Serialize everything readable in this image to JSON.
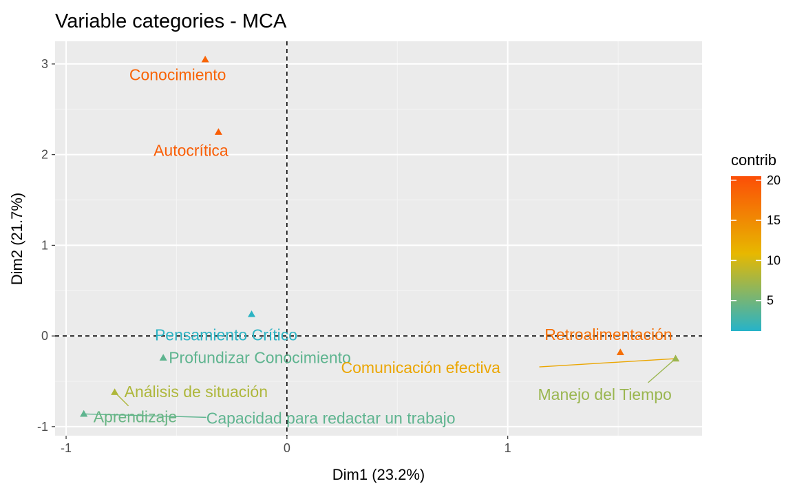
{
  "chart_data": {
    "type": "scatter",
    "title": "Variable categories - MCA",
    "xlabel": "Dim1 (23.2%)",
    "ylabel": "Dim2 (21.7%)",
    "xlim": [
      -1.05,
      1.88
    ],
    "ylim": [
      -1.1,
      3.25
    ],
    "xticks": [
      -1,
      0,
      1
    ],
    "yticks": [
      -1,
      0,
      1,
      2,
      3
    ],
    "grid": true,
    "reference_lines": {
      "x": 0,
      "y": 0,
      "style": "dashed"
    },
    "legend": {
      "title": "contrib",
      "position": "right",
      "ticks": [
        5,
        10,
        15,
        20
      ],
      "range": [
        1.2,
        20.5
      ],
      "gradient": [
        "#26b3c9",
        "#e7b800",
        "#fc4e07"
      ]
    },
    "points": [
      {
        "label": "Conocimiento",
        "x": -0.37,
        "y": 3.05,
        "contrib": 18.5
      },
      {
        "label": "Autocrítica",
        "x": -0.31,
        "y": 2.25,
        "contrib": 19.0
      },
      {
        "label": "Pensamiento Crítico",
        "x": -0.16,
        "y": 0.24,
        "contrib": 1.5
      },
      {
        "label": "Profundizar Conocimiento",
        "x": -0.56,
        "y": -0.24,
        "contrib": 4.0
      },
      {
        "label": "Análisis de situación",
        "x": -0.78,
        "y": -0.62,
        "contrib": 8.0
      },
      {
        "label": "Aprendizaje",
        "x": -0.92,
        "y": -0.86,
        "contrib": 4.5
      },
      {
        "label": "Capacidad para redactar un trabajo",
        "x": -0.92,
        "y": -0.86,
        "contrib": 4.0
      },
      {
        "label": "Retroalimentación",
        "x": 1.51,
        "y": -0.18,
        "contrib": 17.5
      },
      {
        "label": "Comunicación efectiva",
        "x": 1.76,
        "y": -0.25,
        "contrib": 12.5
      },
      {
        "label": "Manejo del Tiempo",
        "x": 1.76,
        "y": -0.25,
        "contrib": 7.0
      }
    ]
  }
}
